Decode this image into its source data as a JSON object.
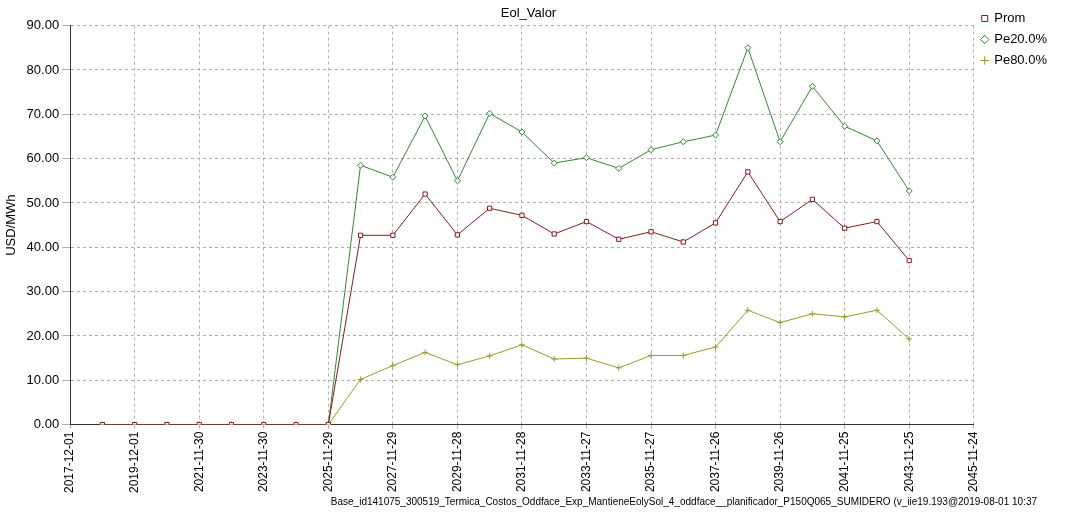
{
  "chart_data": {
    "type": "line",
    "title": "Eol_Valor",
    "ylabel": "USD/MWh",
    "x": [
      "2018-12-01",
      "2019-12-01",
      "2020-11-30",
      "2021-11-30",
      "2022-11-30",
      "2023-11-30",
      "2024-11-29",
      "2025-11-29",
      "2026-11-29",
      "2027-11-29",
      "2028-11-28",
      "2029-11-28",
      "2030-11-28",
      "2031-11-28",
      "2032-11-27",
      "2033-11-27",
      "2034-11-27",
      "2035-11-27",
      "2036-11-26",
      "2037-11-26",
      "2038-11-26",
      "2039-11-26",
      "2040-11-25",
      "2041-11-25",
      "2042-11-25",
      "2043-11-25"
    ],
    "series": [
      {
        "name": "Prom",
        "color": "#8b1a1a",
        "marker": "square",
        "values": [
          0,
          0,
          0,
          0,
          0,
          0,
          0,
          0,
          42.7,
          42.7,
          52,
          42.8,
          48.8,
          47.2,
          43,
          45.8,
          41.8,
          43.5,
          41.2,
          45.5,
          57,
          45.8,
          50.8,
          44.3,
          45.8,
          37
        ]
      },
      {
        "name": "Pe20.0%",
        "color": "#2e8b2e",
        "marker": "diamond",
        "values": [
          null,
          null,
          null,
          null,
          null,
          null,
          null,
          0,
          58.5,
          55.8,
          69.6,
          55,
          70.2,
          66,
          59,
          60.2,
          57.8,
          62,
          63.8,
          65.3,
          85,
          63.8,
          76.3,
          67.3,
          64,
          52.7
        ]
      },
      {
        "name": "Pe80.0%",
        "color": "#9a9a2a",
        "marker": "cross",
        "values": [
          0,
          0,
          0,
          0,
          0,
          0,
          0,
          0,
          10.2,
          13.3,
          16.3,
          13.5,
          15.5,
          18,
          14.8,
          15,
          12.8,
          15.6,
          15.6,
          17.5,
          25.8,
          23,
          25,
          24.3,
          25.8,
          19.3
        ]
      }
    ],
    "xlim": [
      "2017-12-01",
      "2045-11-24"
    ],
    "xticks": [
      "2017-12-01",
      "2019-12-01",
      "2021-11-30",
      "2023-11-30",
      "2025-11-29",
      "2027-11-29",
      "2029-11-28",
      "2031-11-28",
      "2033-11-27",
      "2035-11-27",
      "2037-11-26",
      "2039-11-26",
      "2041-11-25",
      "2043-11-25",
      "2045-11-24"
    ],
    "ylim": [
      0,
      90
    ],
    "yticks": [
      {
        "value": 0,
        "label": "0.00"
      },
      {
        "value": 10,
        "label": "10.00"
      },
      {
        "value": 20,
        "label": "20.00"
      },
      {
        "value": 30,
        "label": "30.00"
      },
      {
        "value": 40,
        "label": "40.00"
      },
      {
        "value": 50,
        "label": "50.00"
      },
      {
        "value": 60,
        "label": "60.00"
      },
      {
        "value": 70,
        "label": "70.00"
      },
      {
        "value": 80,
        "label": "80.00"
      },
      {
        "value": 90,
        "label": "90.00"
      }
    ],
    "grid": true,
    "legend": "top right",
    "annotations": [
      "Base_id141075_300519_Termica_Costos_Oddface_Exp_MantieneEolySol_4_oddface__planificador_P150Q065_SUMIDERO (v_iie19.193@2019-08-01 10:37"
    ]
  }
}
